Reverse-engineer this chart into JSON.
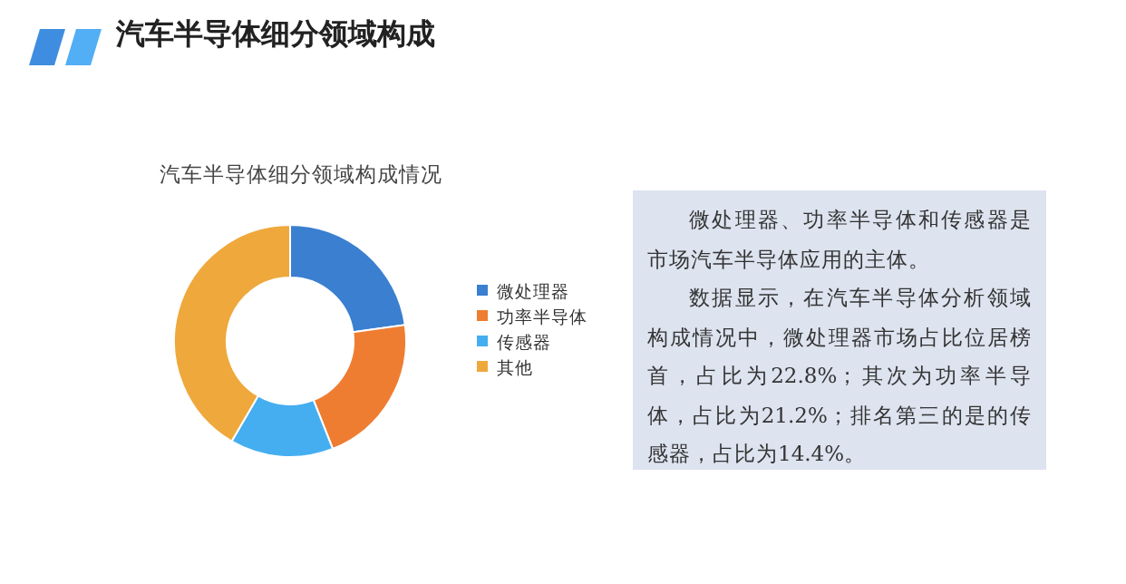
{
  "chart_data": [
    {
      "type": "other",
      "title": "汽车半导体细分领域构成"
    },
    {
      "type": "donut",
      "title": "汽车半导体细分领域构成情况",
      "categories": [
        "微处理器",
        "功率半导体",
        "传感器",
        "其他"
      ],
      "values": [
        22.8,
        21.2,
        14.4,
        41.6
      ],
      "colors": [
        "#3a7fd0",
        "#ef7d31",
        "#45aef0",
        "#efa83c"
      ],
      "legend": "right"
    },
    {
      "type": "other",
      "annotations": [
        "微处理器、功率半导体和传感器是市场汽车半导体应用的主体。",
        "数据显示，在汽车半导体分析领域构成情况中，微处理器市场占比位居榜首，占比为22.8%；其次为功率半导体，占比为21.2%；排名第三的是的传感器，占比为14.4%。"
      ]
    }
  ]
}
